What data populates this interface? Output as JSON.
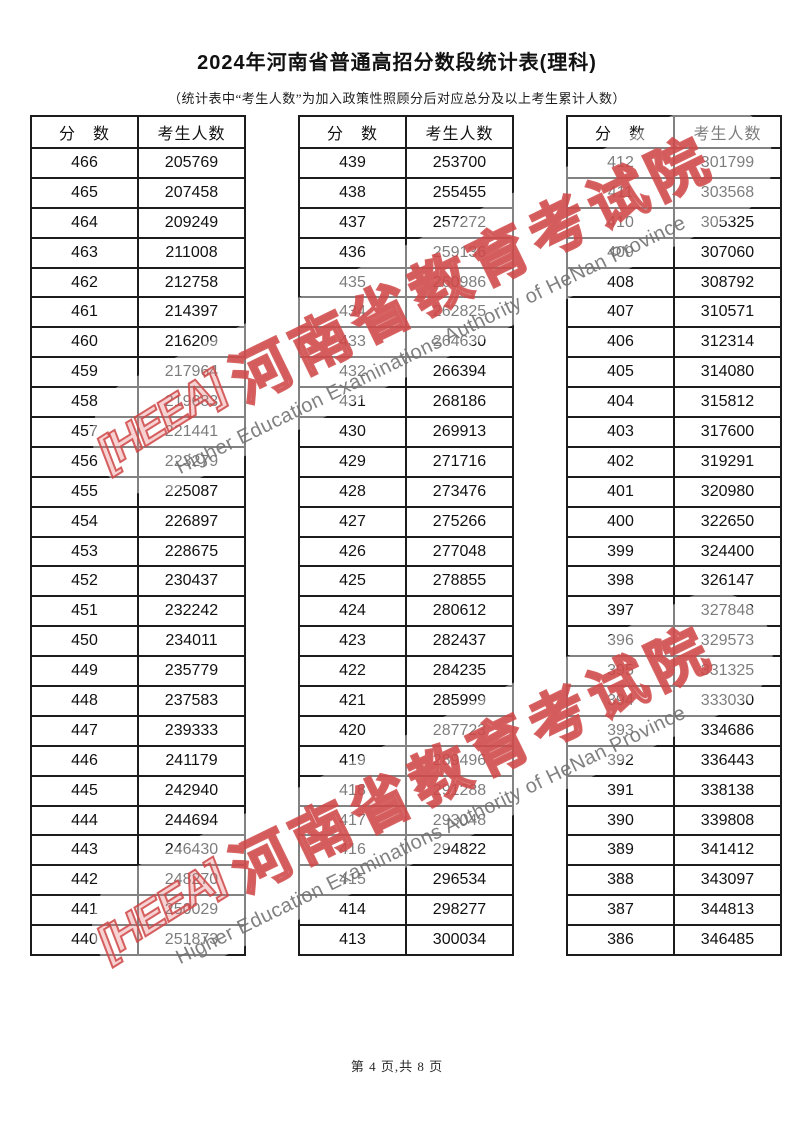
{
  "page": {
    "title": "2024年河南省普通高招分数段统计表(理科)",
    "subtitle": "（统计表中“考生人数”为加入政策性照顾分后对应总分及以上考生累计人数）",
    "footer": "第 4 页,共 8 页"
  },
  "table_headers": {
    "score": "分　数",
    "count": "考生人数"
  },
  "watermark": {
    "logo_text": "[HEEA]",
    "cjk_text": "河南省教育考试院",
    "en_text": "Higher Education Examinations Authority of HeNan Province",
    "red_color": "#cf4646",
    "gray_color": "#6e6e6e"
  },
  "tables": [
    {
      "rows": [
        {
          "score": "466",
          "count": "205769"
        },
        {
          "score": "465",
          "count": "207458"
        },
        {
          "score": "464",
          "count": "209249"
        },
        {
          "score": "463",
          "count": "211008"
        },
        {
          "score": "462",
          "count": "212758"
        },
        {
          "score": "461",
          "count": "214397"
        },
        {
          "score": "460",
          "count": "216209"
        },
        {
          "score": "459",
          "count": "217964"
        },
        {
          "score": "458",
          "count": "219683"
        },
        {
          "score": "457",
          "count": "221441"
        },
        {
          "score": "456",
          "count": "223279"
        },
        {
          "score": "455",
          "count": "225087"
        },
        {
          "score": "454",
          "count": "226897"
        },
        {
          "score": "453",
          "count": "228675"
        },
        {
          "score": "452",
          "count": "230437"
        },
        {
          "score": "451",
          "count": "232242"
        },
        {
          "score": "450",
          "count": "234011"
        },
        {
          "score": "449",
          "count": "235779"
        },
        {
          "score": "448",
          "count": "237583"
        },
        {
          "score": "447",
          "count": "239333"
        },
        {
          "score": "446",
          "count": "241179"
        },
        {
          "score": "445",
          "count": "242940"
        },
        {
          "score": "444",
          "count": "244694"
        },
        {
          "score": "443",
          "count": "246430"
        },
        {
          "score": "442",
          "count": "248270"
        },
        {
          "score": "441",
          "count": "250029"
        },
        {
          "score": "440",
          "count": "251873"
        }
      ]
    },
    {
      "rows": [
        {
          "score": "439",
          "count": "253700"
        },
        {
          "score": "438",
          "count": "255455"
        },
        {
          "score": "437",
          "count": "257272"
        },
        {
          "score": "436",
          "count": "259136"
        },
        {
          "score": "435",
          "count": "260986"
        },
        {
          "score": "434",
          "count": "262825"
        },
        {
          "score": "433",
          "count": "264630"
        },
        {
          "score": "432",
          "count": "266394"
        },
        {
          "score": "431",
          "count": "268186"
        },
        {
          "score": "430",
          "count": "269913"
        },
        {
          "score": "429",
          "count": "271716"
        },
        {
          "score": "428",
          "count": "273476"
        },
        {
          "score": "427",
          "count": "275266"
        },
        {
          "score": "426",
          "count": "277048"
        },
        {
          "score": "425",
          "count": "278855"
        },
        {
          "score": "424",
          "count": "280612"
        },
        {
          "score": "423",
          "count": "282437"
        },
        {
          "score": "422",
          "count": "284235"
        },
        {
          "score": "421",
          "count": "285999"
        },
        {
          "score": "420",
          "count": "287723"
        },
        {
          "score": "419",
          "count": "289496"
        },
        {
          "score": "418",
          "count": "291288"
        },
        {
          "score": "417",
          "count": "293048"
        },
        {
          "score": "416",
          "count": "294822"
        },
        {
          "score": "415",
          "count": "296534"
        },
        {
          "score": "414",
          "count": "298277"
        },
        {
          "score": "413",
          "count": "300034"
        }
      ]
    },
    {
      "rows": [
        {
          "score": "412",
          "count": "301799"
        },
        {
          "score": "411",
          "count": "303568"
        },
        {
          "score": "410",
          "count": "305325"
        },
        {
          "score": "409",
          "count": "307060"
        },
        {
          "score": "408",
          "count": "308792"
        },
        {
          "score": "407",
          "count": "310571"
        },
        {
          "score": "406",
          "count": "312314"
        },
        {
          "score": "405",
          "count": "314080"
        },
        {
          "score": "404",
          "count": "315812"
        },
        {
          "score": "403",
          "count": "317600"
        },
        {
          "score": "402",
          "count": "319291"
        },
        {
          "score": "401",
          "count": "320980"
        },
        {
          "score": "400",
          "count": "322650"
        },
        {
          "score": "399",
          "count": "324400"
        },
        {
          "score": "398",
          "count": "326147"
        },
        {
          "score": "397",
          "count": "327848"
        },
        {
          "score": "396",
          "count": "329573"
        },
        {
          "score": "395",
          "count": "331325"
        },
        {
          "score": "394",
          "count": "333030"
        },
        {
          "score": "393",
          "count": "334686"
        },
        {
          "score": "392",
          "count": "336443"
        },
        {
          "score": "391",
          "count": "338138"
        },
        {
          "score": "390",
          "count": "339808"
        },
        {
          "score": "389",
          "count": "341412"
        },
        {
          "score": "388",
          "count": "343097"
        },
        {
          "score": "387",
          "count": "344813"
        },
        {
          "score": "386",
          "count": "346485"
        }
      ]
    }
  ]
}
